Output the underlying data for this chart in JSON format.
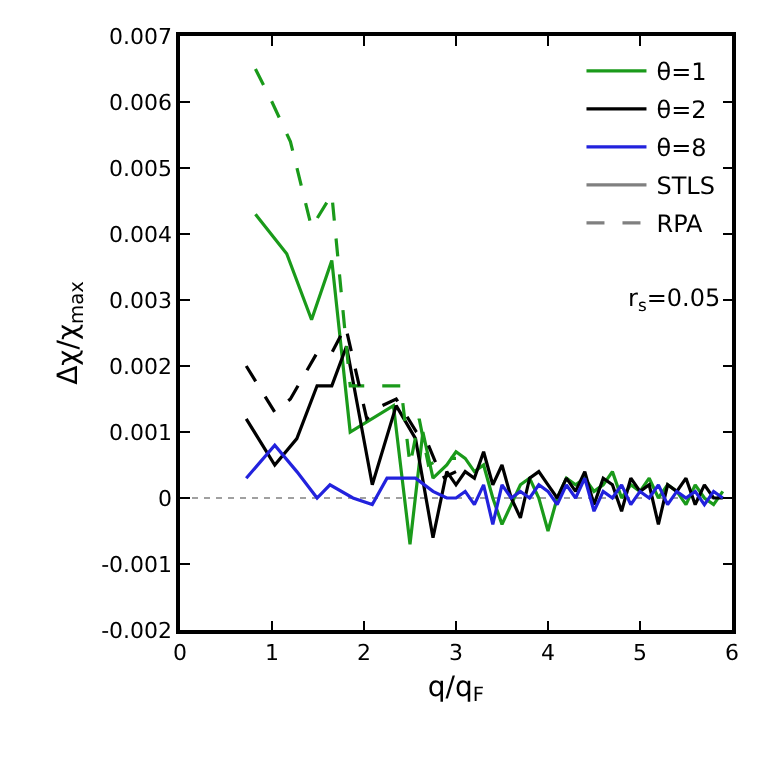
{
  "chart_data": {
    "type": "line",
    "xlabel": "q/q$_{F}$",
    "ylabel": "Δχ/χ$_{max}$",
    "xlim": [
      0,
      6
    ],
    "xticks": [
      0,
      1,
      2,
      3,
      4,
      5,
      6
    ],
    "ylim": [
      -0.002,
      0.007
    ],
    "yticks": [
      -0.002,
      -0.001,
      0,
      0.001,
      0.002,
      0.003,
      0.004,
      0.005,
      0.006,
      0.007
    ],
    "grid": false,
    "legend": "top right",
    "marker": "none",
    "annotations": [
      "r$_{s}$=0.05"
    ],
    "ref_lines": [
      {
        "axis": "y",
        "value": 0,
        "color": "#a0a0a0",
        "line_style": "dotted"
      }
    ],
    "series": [
      {
        "name": "θ=1",
        "color": "#1a9a1a",
        "line_style": "solid",
        "x": [
          0.82,
          1.16,
          1.43,
          1.65,
          1.85,
          2.32,
          2.5,
          2.64,
          2.75,
          2.9,
          3.0,
          3.1,
          3.2,
          3.3,
          3.4,
          3.5,
          3.6,
          3.7,
          3.8,
          3.9,
          4.0,
          4.1,
          4.2,
          4.3,
          4.4,
          4.5,
          4.6,
          4.7,
          4.8,
          4.9,
          5.0,
          5.1,
          5.2,
          5.3,
          5.4,
          5.5,
          5.6,
          5.7,
          5.8,
          5.9
        ],
        "values": [
          0.0043,
          0.0037,
          0.0027,
          0.0036,
          0.001,
          0.0014,
          -0.0007,
          0.001,
          0.0003,
          0.0005,
          0.0007,
          0.0006,
          0.0004,
          0.0005,
          0.0,
          -0.0004,
          -0.0001,
          0.0002,
          0.0003,
          0.0,
          -0.0005,
          0.0,
          0.0003,
          0.0002,
          0.0003,
          0.0001,
          0.0002,
          0.0004,
          0.0,
          0.0002,
          0.0001,
          0.0003,
          0.0,
          0.0002,
          0.0001,
          -0.0001,
          0.0002,
          0.0,
          -0.0001,
          0.0001
        ]
      },
      {
        "name": "θ=2",
        "color": "#000000",
        "line_style": "solid",
        "x": [
          0.72,
          1.03,
          1.27,
          1.49,
          1.65,
          1.81,
          2.09,
          2.35,
          2.56,
          2.75,
          2.9,
          3.0,
          3.1,
          3.2,
          3.3,
          3.4,
          3.5,
          3.6,
          3.7,
          3.8,
          3.9,
          4.0,
          4.1,
          4.2,
          4.3,
          4.4,
          4.5,
          4.6,
          4.7,
          4.8,
          4.9,
          5.0,
          5.1,
          5.2,
          5.3,
          5.4,
          5.5,
          5.6,
          5.7,
          5.8,
          5.9
        ],
        "values": [
          0.0012,
          0.0005,
          0.0009,
          0.0017,
          0.0017,
          0.0023,
          0.0002,
          0.0014,
          0.0009,
          -0.0006,
          0.0004,
          0.0002,
          0.0004,
          0.0003,
          0.0007,
          0.0002,
          0.0005,
          0.0,
          -0.0003,
          0.0003,
          0.0004,
          0.0002,
          0.0,
          0.0003,
          0.0001,
          0.0004,
          -0.0001,
          0.0003,
          0.0002,
          -0.0002,
          0.0003,
          0.0001,
          0.0002,
          -0.0004,
          0.0002,
          0.0001,
          0.0003,
          -0.0001,
          0.0002,
          0.0,
          0.0
        ]
      },
      {
        "name": "θ=8",
        "color": "#2222dd",
        "line_style": "solid",
        "x": [
          0.72,
          1.03,
          1.27,
          1.49,
          1.63,
          1.88,
          2.09,
          2.25,
          2.56,
          2.75,
          2.9,
          3.0,
          3.1,
          3.2,
          3.3,
          3.4,
          3.5,
          3.6,
          3.7,
          3.8,
          3.9,
          4.0,
          4.1,
          4.2,
          4.3,
          4.4,
          4.5,
          4.6,
          4.7,
          4.8,
          4.9,
          5.0,
          5.1,
          5.2,
          5.3,
          5.4,
          5.5,
          5.6,
          5.7,
          5.8,
          5.9
        ],
        "values": [
          0.0003,
          0.0008,
          0.0004,
          0.0,
          0.0002,
          0.0,
          -0.0001,
          0.0003,
          0.0003,
          0.0001,
          0.0,
          0.0,
          0.0001,
          -0.0001,
          0.0002,
          -0.0004,
          0.0002,
          0.0,
          0.0001,
          0.0,
          0.0002,
          0.0001,
          -0.0001,
          0.0002,
          0.0,
          0.0003,
          -0.0002,
          0.0001,
          0.0,
          0.0002,
          -0.0001,
          0.0001,
          0.0,
          0.0002,
          -0.0001,
          0.0001,
          0.0,
          0.0001,
          -0.0001,
          0.0001,
          0.0
        ]
      },
      {
        "color": "#1a9a1a",
        "line_style": "dashed",
        "x": [
          0.82,
          1.0,
          1.2,
          1.43,
          1.65,
          1.85,
          2.0,
          2.2,
          2.4,
          2.5,
          2.6,
          2.7,
          2.85,
          3.0
        ],
        "values": [
          0.0065,
          0.006,
          0.0054,
          0.0041,
          0.0046,
          0.0017,
          0.0017,
          0.0017,
          0.0017,
          0.0005,
          0.0012,
          0.0005,
          0.0006,
          0.0006
        ]
      },
      {
        "color": "#000000",
        "line_style": "dashed",
        "x": [
          0.72,
          1.03,
          1.2,
          1.49,
          1.65,
          1.8,
          2.03,
          2.2,
          2.35,
          2.57,
          2.7,
          2.85,
          3.0
        ],
        "values": [
          0.002,
          0.0013,
          0.0015,
          0.0022,
          0.0022,
          0.0026,
          0.0012,
          0.0014,
          0.0015,
          0.001,
          0.0008,
          0.0003,
          0.0004
        ]
      },
      {
        "name": "STLS",
        "color": "#808080",
        "line_style": "solid"
      },
      {
        "name": "RPA",
        "color": "#808080",
        "line_style": "dashed"
      }
    ]
  }
}
